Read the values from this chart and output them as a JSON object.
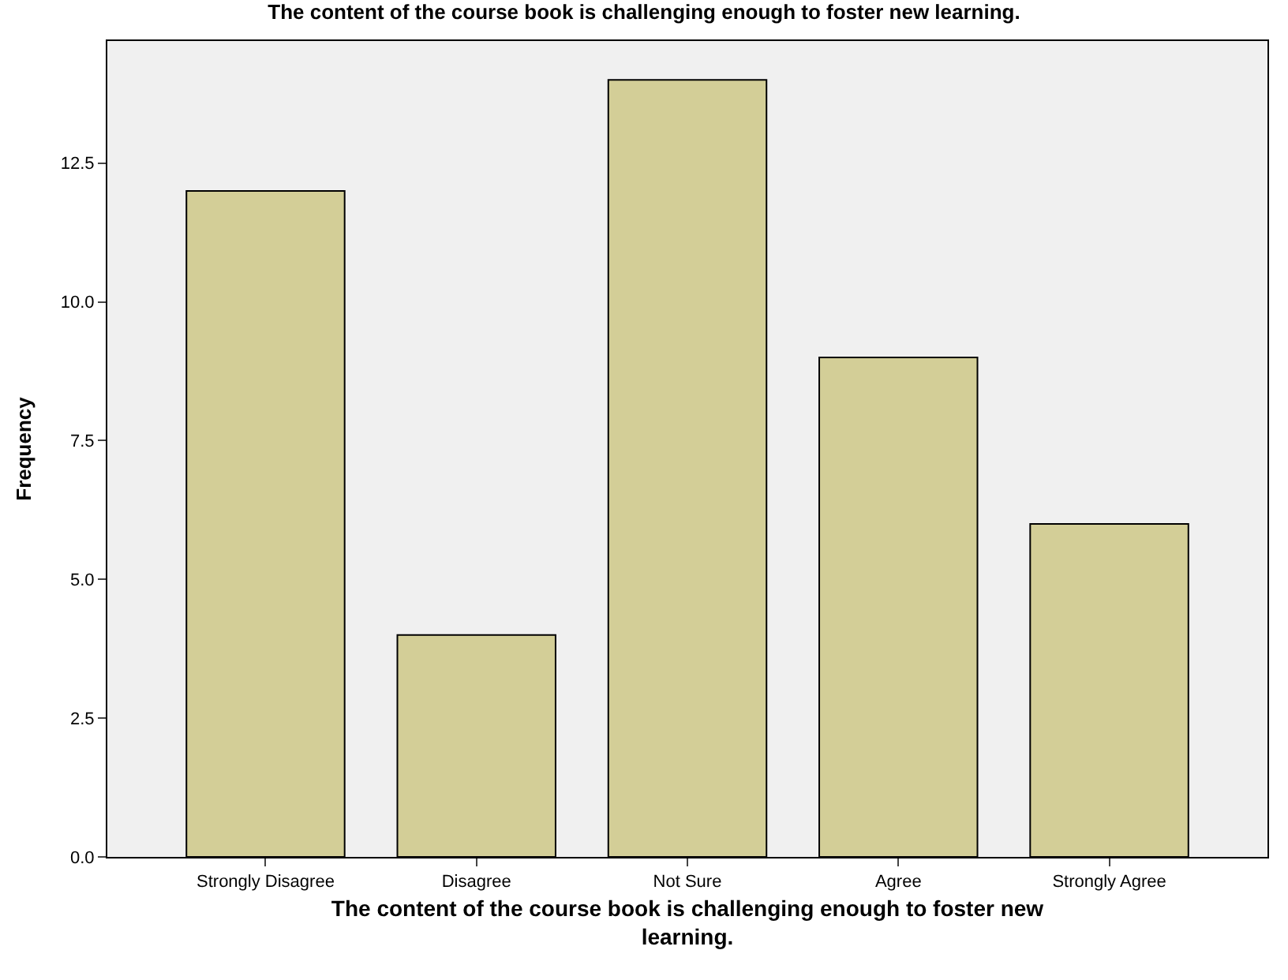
{
  "chart_data": {
    "type": "bar",
    "title": "The content of the course book is challenging enough to foster new learning.",
    "xlabel": "The content of the course book is challenging enough to foster new learning.",
    "ylabel": "Frequency",
    "categories": [
      "Strongly Disagree",
      "Disagree",
      "Not Sure",
      "Agree",
      "Strongly Agree"
    ],
    "values": [
      12,
      4,
      14,
      9,
      6
    ],
    "color": "#d3ce97",
    "ylim": [
      0,
      14.7
    ],
    "yticks": [
      {
        "value": 0,
        "label": "0.0"
      },
      {
        "value": 2.5,
        "label": "2.5"
      },
      {
        "value": 5,
        "label": "5.0"
      },
      {
        "value": 7.5,
        "label": "7.5"
      },
      {
        "value": 10,
        "label": "10.0"
      },
      {
        "value": 12.5,
        "label": "12.5"
      }
    ],
    "grid": false
  }
}
